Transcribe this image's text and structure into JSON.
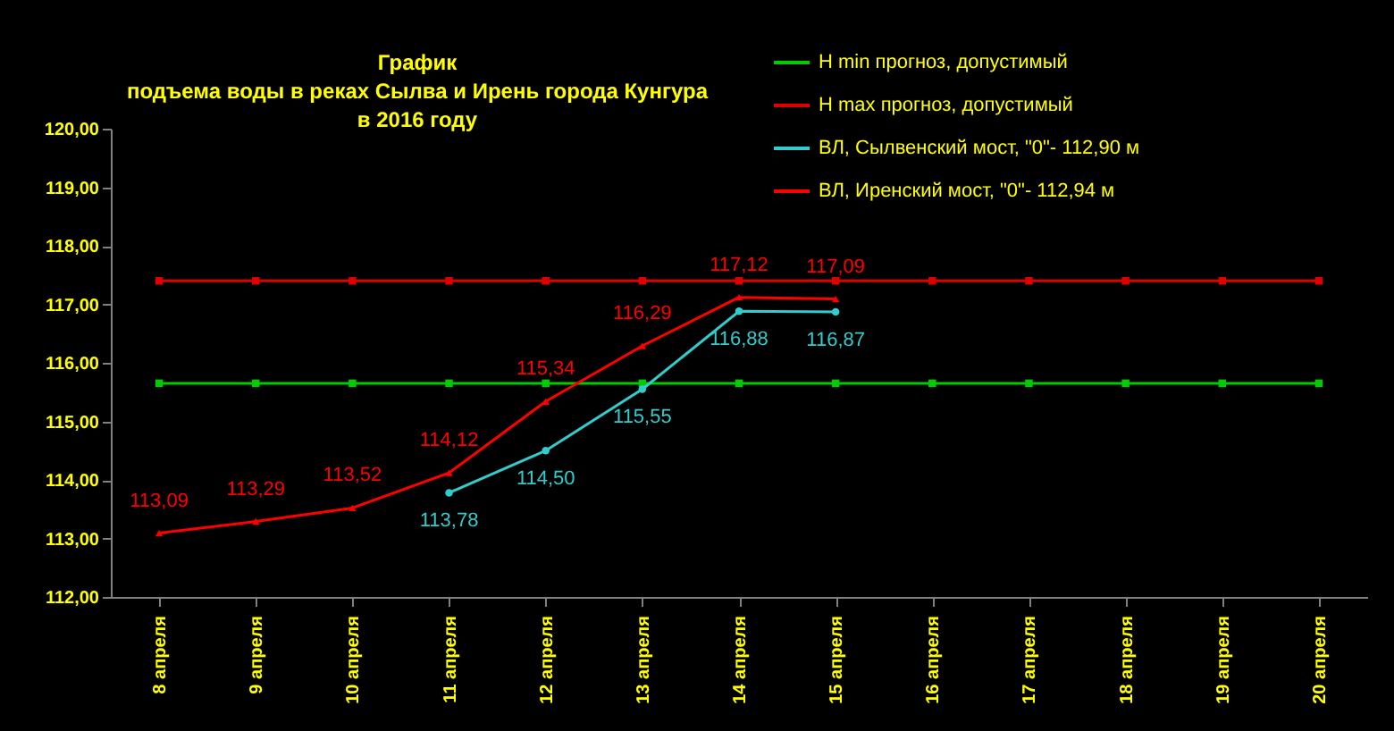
{
  "chart_data": {
    "type": "line",
    "title": "График\nподъема воды в реках Сылва и Ирень города Кунгура\nв 2016 году",
    "categories": [
      "8 апреля",
      "9 апреля",
      "10 апреля",
      "11 апреля",
      "12 апреля",
      "13 апреля",
      "14 апреля",
      "15 апреля",
      "16 апреля",
      "17 апреля",
      "18 апреля",
      "19 апреля",
      "20 апреля"
    ],
    "series": [
      {
        "name": "H min прогноз, допустимый",
        "color": "#00cc00",
        "marker": "square",
        "values": [
          115.65,
          115.65,
          115.65,
          115.65,
          115.65,
          115.65,
          115.65,
          115.65,
          115.65,
          115.65,
          115.65,
          115.65,
          115.65
        ]
      },
      {
        "name": "H max прогноз, допустимый",
        "color": "#e00000",
        "marker": "square",
        "values": [
          117.4,
          117.4,
          117.4,
          117.4,
          117.4,
          117.4,
          117.4,
          117.4,
          117.4,
          117.4,
          117.4,
          117.4,
          117.4
        ]
      },
      {
        "name": "ВЛ, Сылвенский мост, \"0\"- 112,90 м",
        "color": "#33cccc",
        "marker": "circle",
        "values": [
          null,
          null,
          null,
          113.78,
          114.5,
          115.55,
          116.88,
          116.87,
          null,
          null,
          null,
          null,
          null
        ],
        "value_labels": [
          null,
          null,
          null,
          "113,78",
          "114,50",
          "115,55",
          "116,88",
          "116,87",
          null,
          null,
          null,
          null,
          null
        ]
      },
      {
        "name": "ВЛ, Иренский мост, \"0\"- 112,94 м",
        "color": "#ff0000",
        "marker": "triangle",
        "values": [
          113.09,
          113.29,
          113.52,
          114.12,
          115.34,
          116.29,
          117.12,
          117.09,
          null,
          null,
          null,
          null,
          null
        ],
        "value_labels": [
          "113,09",
          "113,29",
          "113,52",
          "114,12",
          "115,34",
          "116,29",
          "117,12",
          "117,09",
          null,
          null,
          null,
          null,
          null
        ]
      }
    ],
    "ylim": [
      112,
      120
    ],
    "yticks": [
      {
        "value": 112,
        "label": "112,00"
      },
      {
        "value": 113,
        "label": "113,00"
      },
      {
        "value": 114,
        "label": "114,00"
      },
      {
        "value": 115,
        "label": "115,00"
      },
      {
        "value": 116,
        "label": "116,00"
      },
      {
        "value": 117,
        "label": "117,00"
      },
      {
        "value": 118,
        "label": "118,00"
      },
      {
        "value": 119,
        "label": "119,00"
      },
      {
        "value": 120,
        "label": "120,00"
      }
    ],
    "grid": false,
    "legend": "top right"
  }
}
